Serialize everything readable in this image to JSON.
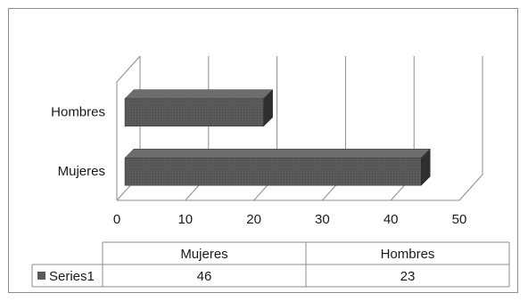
{
  "chart_data": {
    "type": "bar",
    "orientation": "horizontal",
    "style": "3d",
    "categories": [
      "Mujeres",
      "Hombres"
    ],
    "series": [
      {
        "name": "Series1",
        "values": [
          46,
          23
        ],
        "color": "#595959"
      }
    ],
    "xlim": [
      0,
      50
    ],
    "xticks": [
      "0",
      "10",
      "20",
      "30",
      "40",
      "50"
    ],
    "grid": true,
    "legend": "data-table",
    "data_table": {
      "headers": [
        "Mujeres",
        "Hombres"
      ],
      "rows": [
        {
          "label": "Series1",
          "values": [
            "46",
            "23"
          ]
        }
      ]
    }
  }
}
